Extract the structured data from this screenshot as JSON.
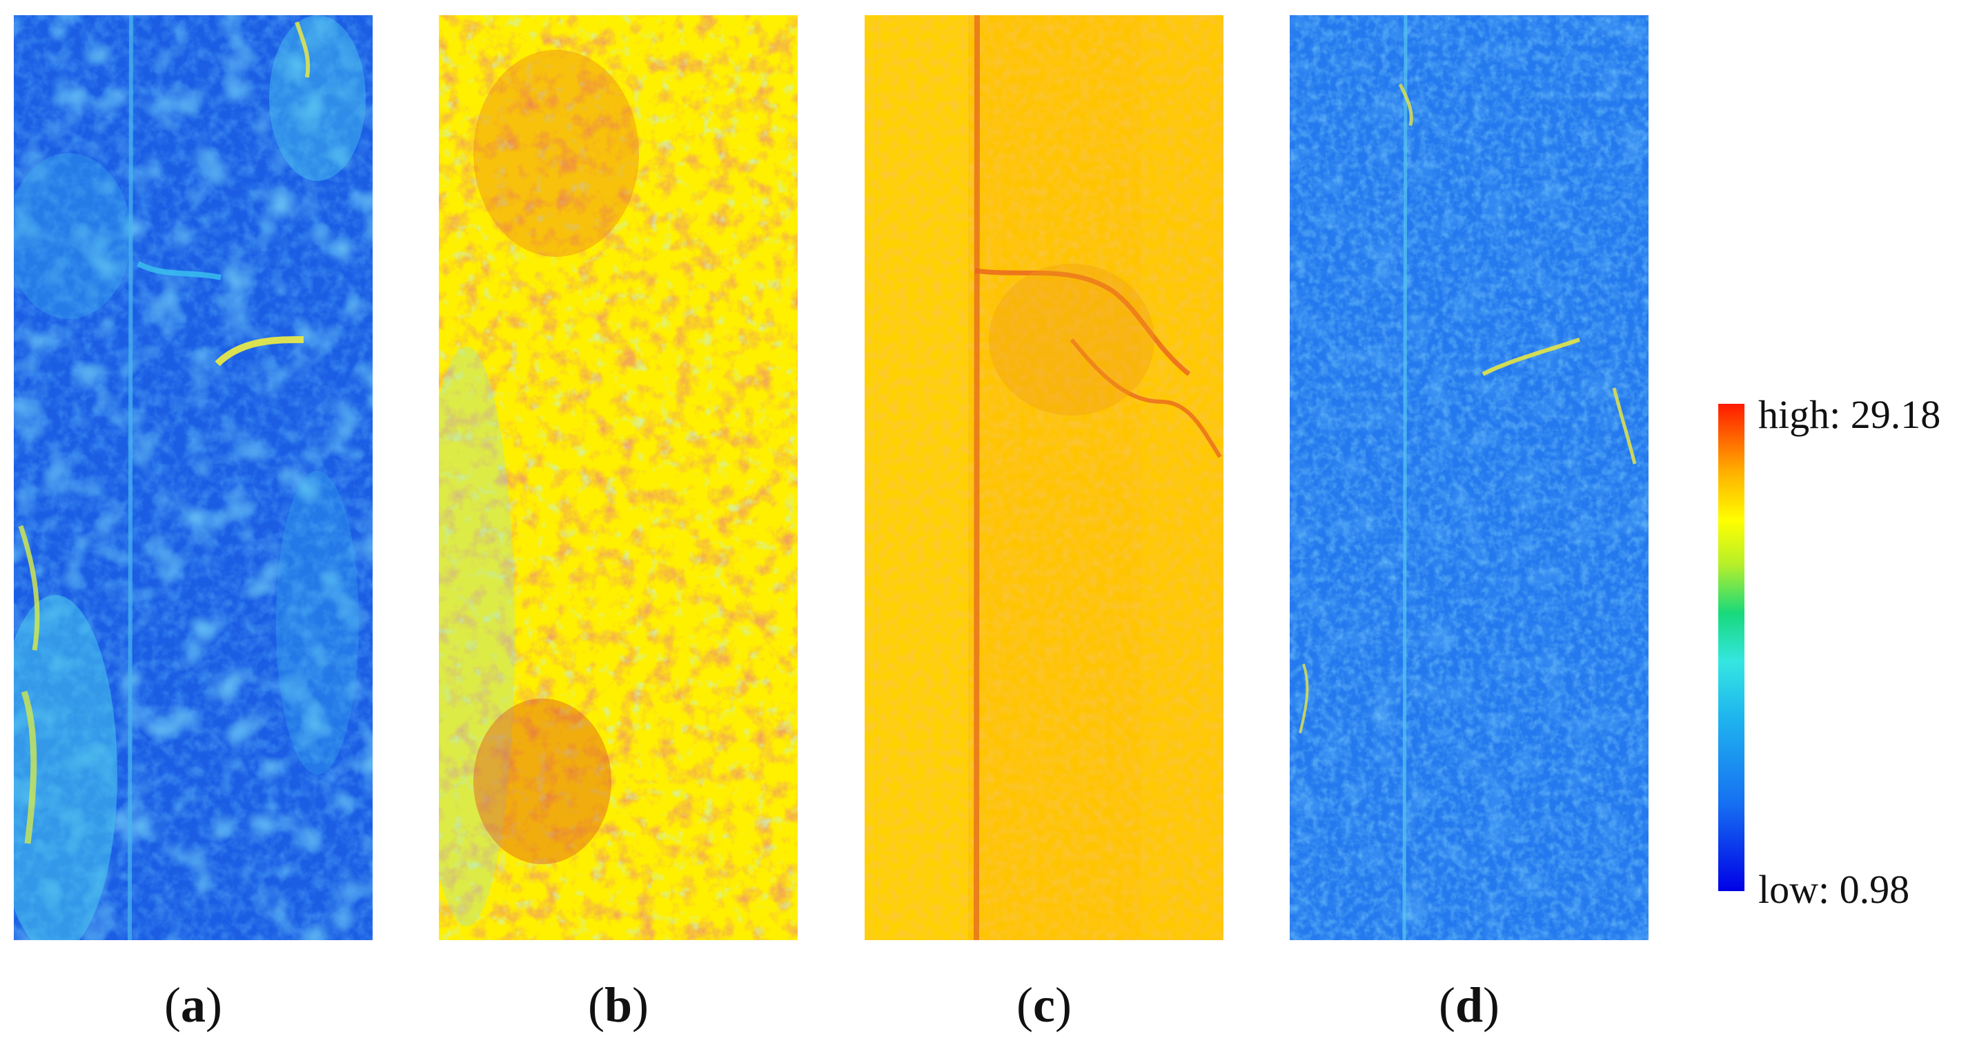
{
  "figure": {
    "panels": [
      {
        "id": "a",
        "caption_open": "(",
        "caption_letter": "a",
        "caption_close": ")",
        "dominant_colors": [
          "#1b63e6",
          "#1e8ef0",
          "#2cc6ee",
          "#7ee6e0",
          "#e4ee44"
        ]
      },
      {
        "id": "b",
        "caption_open": "(",
        "caption_letter": "b",
        "caption_close": ")",
        "dominant_colors": [
          "#fff200",
          "#ffd000",
          "#f39a22",
          "#e3531e",
          "#8fe0cf"
        ]
      },
      {
        "id": "c",
        "caption_open": "(",
        "caption_letter": "c",
        "caption_close": ")",
        "dominant_colors": [
          "#ffd400",
          "#ffbe00",
          "#f6a318",
          "#e86a1f"
        ]
      },
      {
        "id": "d",
        "caption_open": "(",
        "caption_letter": "d",
        "caption_close": ")",
        "dominant_colors": [
          "#1e70f0",
          "#2a98f2",
          "#4fc3ef",
          "#e7e645"
        ]
      }
    ],
    "colorbar": {
      "high_label": "high: 29.18",
      "low_label": "low: 0.98",
      "min": 0.98,
      "max": 29.18,
      "colors": [
        "#0000e6",
        "#1fb6ee",
        "#18d97c",
        "#ffff00",
        "#ff1a00"
      ]
    }
  }
}
